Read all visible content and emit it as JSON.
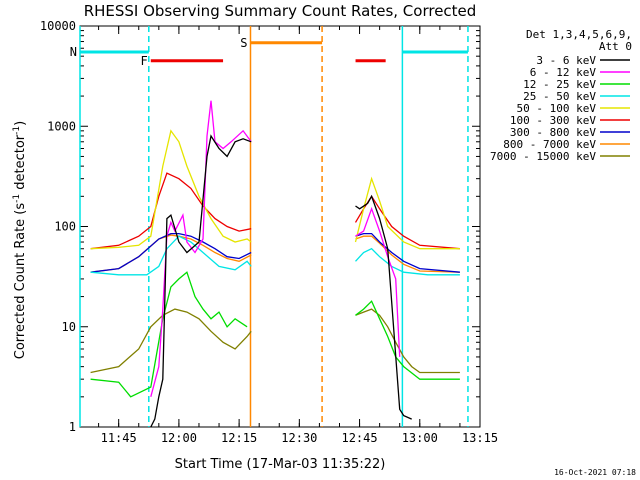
{
  "chart_data": {
    "type": "line",
    "title": "RHESSI Observing Summary Count Rates, Corrected",
    "xlabel": "Start Time (17-Mar-03 11:35:22)",
    "ylabel_main": "Corrected Count Rate (s",
    "ylabel_sup": "-1",
    "ylabel_mid": " detector",
    "ylabel_end": ")",
    "x_ticks": [
      "11:45",
      "12:00",
      "12:15",
      "12:30",
      "12:45",
      "13:00",
      "13:15"
    ],
    "y_ticks": [
      "1",
      "10",
      "100",
      "1000",
      "10000"
    ],
    "y_scale": "log",
    "ylim": [
      1,
      10000
    ],
    "xlim": [
      "11:35:22",
      "13:15:00"
    ],
    "legend_header": [
      "Det 1,3,4,5,6,9,",
      "Att 0"
    ],
    "legend_position": "top-right, outside plot",
    "flags": {
      "N_label": "N",
      "F_label": "F",
      "S_label": "S"
    },
    "series": [
      {
        "name": "3 - 6 keV",
        "color": "#000000",
        "points": [
          [
            "11:53",
            1
          ],
          [
            "11:54",
            1.2
          ],
          [
            "11:55",
            2
          ],
          [
            "11:56",
            3
          ],
          [
            "11:57",
            120
          ],
          [
            "11:58",
            130
          ],
          [
            "12:00",
            70
          ],
          [
            "12:02",
            55
          ],
          [
            "12:05",
            70
          ],
          [
            "12:07",
            500
          ],
          [
            "12:08",
            800
          ],
          [
            "12:10",
            600
          ],
          [
            "12:12",
            500
          ],
          [
            "12:14",
            700
          ],
          [
            "12:16",
            750
          ],
          [
            "12:18",
            700
          ],
          [
            "12:44",
            160
          ],
          [
            "12:45",
            150
          ],
          [
            "12:47",
            170
          ],
          [
            "12:48",
            200
          ],
          [
            "12:50",
            120
          ],
          [
            "12:52",
            60
          ],
          [
            "12:55",
            1.5
          ],
          [
            "12:56",
            1.3
          ],
          [
            "12:58",
            1.2
          ]
        ]
      },
      {
        "name": "6 - 12 keV",
        "color": "#ff00ff",
        "points": [
          [
            "11:53",
            2
          ],
          [
            "11:55",
            4
          ],
          [
            "11:56",
            15
          ],
          [
            "11:57",
            80
          ],
          [
            "11:58",
            110
          ],
          [
            "11:59",
            90
          ],
          [
            "12:01",
            130
          ],
          [
            "12:02",
            70
          ],
          [
            "12:04",
            55
          ],
          [
            "12:06",
            75
          ],
          [
            "12:07",
            800
          ],
          [
            "12:08",
            1800
          ],
          [
            "12:09",
            700
          ],
          [
            "12:11",
            600
          ],
          [
            "12:13",
            700
          ],
          [
            "12:16",
            900
          ],
          [
            "12:18",
            700
          ],
          [
            "12:44",
            80
          ],
          [
            "12:46",
            90
          ],
          [
            "12:48",
            150
          ],
          [
            "12:50",
            90
          ],
          [
            "12:52",
            50
          ],
          [
            "12:54",
            30
          ],
          [
            "12:55",
            5
          ]
        ]
      },
      {
        "name": "12 - 25 keV",
        "color": "#00dd00",
        "points": [
          [
            "11:38",
            3
          ],
          [
            "11:45",
            2.8
          ],
          [
            "11:48",
            2
          ],
          [
            "11:53",
            2.5
          ],
          [
            "11:56",
            12
          ],
          [
            "11:58",
            25
          ],
          [
            "12:00",
            30
          ],
          [
            "12:02",
            35
          ],
          [
            "12:04",
            20
          ],
          [
            "12:06",
            15
          ],
          [
            "12:08",
            12
          ],
          [
            "12:10",
            14
          ],
          [
            "12:12",
            10
          ],
          [
            "12:14",
            12
          ],
          [
            "12:17",
            10
          ],
          [
            "12:44",
            13
          ],
          [
            "12:46",
            15
          ],
          [
            "12:48",
            18
          ],
          [
            "12:50",
            12
          ],
          [
            "12:52",
            8
          ],
          [
            "12:54",
            5
          ],
          [
            "12:56",
            4
          ],
          [
            "13:00",
            3
          ],
          [
            "13:10",
            3
          ]
        ]
      },
      {
        "name": "25 - 50 keV",
        "color": "#00e5e5",
        "points": [
          [
            "11:38",
            35
          ],
          [
            "11:45",
            33
          ],
          [
            "11:52",
            33
          ],
          [
            "11:55",
            40
          ],
          [
            "11:57",
            60
          ],
          [
            "12:00",
            80
          ],
          [
            "12:03",
            70
          ],
          [
            "12:06",
            55
          ],
          [
            "12:10",
            40
          ],
          [
            "12:14",
            37
          ],
          [
            "12:17",
            45
          ],
          [
            "12:18",
            40
          ],
          [
            "12:44",
            45
          ],
          [
            "12:46",
            55
          ],
          [
            "12:48",
            60
          ],
          [
            "12:50",
            50
          ],
          [
            "12:53",
            40
          ],
          [
            "12:56",
            35
          ],
          [
            "13:02",
            33
          ],
          [
            "13:10",
            33
          ]
        ]
      },
      {
        "name": "50 - 100 keV",
        "color": "#e5e500",
        "points": [
          [
            "11:38",
            60
          ],
          [
            "11:45",
            62
          ],
          [
            "11:50",
            65
          ],
          [
            "11:53",
            80
          ],
          [
            "11:56",
            400
          ],
          [
            "11:58",
            900
          ],
          [
            "12:00",
            700
          ],
          [
            "12:02",
            400
          ],
          [
            "12:05",
            200
          ],
          [
            "12:08",
            120
          ],
          [
            "12:11",
            80
          ],
          [
            "12:14",
            70
          ],
          [
            "12:17",
            75
          ],
          [
            "12:18",
            70
          ],
          [
            "12:44",
            70
          ],
          [
            "12:46",
            150
          ],
          [
            "12:48",
            300
          ],
          [
            "12:50",
            180
          ],
          [
            "12:52",
            100
          ],
          [
            "12:56",
            70
          ],
          [
            "13:00",
            60
          ],
          [
            "13:10",
            60
          ]
        ]
      },
      {
        "name": "100 - 300 keV",
        "color": "#ee0000",
        "points": [
          [
            "11:38",
            60
          ],
          [
            "11:45",
            65
          ],
          [
            "11:50",
            80
          ],
          [
            "11:53",
            100
          ],
          [
            "11:55",
            200
          ],
          [
            "11:57",
            340
          ],
          [
            "12:00",
            300
          ],
          [
            "12:03",
            240
          ],
          [
            "12:06",
            160
          ],
          [
            "12:09",
            120
          ],
          [
            "12:12",
            100
          ],
          [
            "12:15",
            90
          ],
          [
            "12:18",
            95
          ],
          [
            "12:44",
            110
          ],
          [
            "12:46",
            150
          ],
          [
            "12:48",
            200
          ],
          [
            "12:50",
            150
          ],
          [
            "12:53",
            100
          ],
          [
            "12:56",
            80
          ],
          [
            "13:00",
            65
          ],
          [
            "13:10",
            60
          ]
        ]
      },
      {
        "name": "300 - 800 keV",
        "color": "#0000cc",
        "points": [
          [
            "11:38",
            35
          ],
          [
            "11:45",
            38
          ],
          [
            "11:50",
            50
          ],
          [
            "11:55",
            75
          ],
          [
            "11:58",
            85
          ],
          [
            "12:00",
            85
          ],
          [
            "12:03",
            80
          ],
          [
            "12:06",
            70
          ],
          [
            "12:09",
            60
          ],
          [
            "12:12",
            50
          ],
          [
            "12:15",
            48
          ],
          [
            "12:18",
            55
          ],
          [
            "12:44",
            80
          ],
          [
            "12:46",
            85
          ],
          [
            "12:48",
            85
          ],
          [
            "12:50",
            70
          ],
          [
            "12:53",
            55
          ],
          [
            "12:56",
            45
          ],
          [
            "13:00",
            38
          ],
          [
            "13:10",
            35
          ]
        ]
      },
      {
        "name": "800 - 7000 keV",
        "color": "#ff8800",
        "points": [
          [
            "11:38",
            35
          ],
          [
            "11:45",
            38
          ],
          [
            "11:50",
            50
          ],
          [
            "11:55",
            75
          ],
          [
            "11:58",
            82
          ],
          [
            "12:00",
            80
          ],
          [
            "12:03",
            75
          ],
          [
            "12:06",
            65
          ],
          [
            "12:09",
            55
          ],
          [
            "12:12",
            48
          ],
          [
            "12:15",
            45
          ],
          [
            "12:18",
            52
          ],
          [
            "12:44",
            75
          ],
          [
            "12:46",
            80
          ],
          [
            "12:48",
            80
          ],
          [
            "12:50",
            68
          ],
          [
            "12:53",
            52
          ],
          [
            "12:56",
            42
          ],
          [
            "13:00",
            36
          ],
          [
            "13:10",
            35
          ]
        ]
      },
      {
        "name": "7000 - 15000 keV",
        "color": "#808000",
        "points": [
          [
            "11:38",
            3.5
          ],
          [
            "11:45",
            4
          ],
          [
            "11:50",
            6
          ],
          [
            "11:53",
            10
          ],
          [
            "11:56",
            13
          ],
          [
            "11:59",
            15
          ],
          [
            "12:02",
            14
          ],
          [
            "12:05",
            12
          ],
          [
            "12:08",
            9
          ],
          [
            "12:11",
            7
          ],
          [
            "12:14",
            6
          ],
          [
            "12:17",
            8
          ],
          [
            "12:18",
            9
          ],
          [
            "12:44",
            13
          ],
          [
            "12:46",
            14
          ],
          [
            "12:48",
            15
          ],
          [
            "12:50",
            13
          ],
          [
            "12:52",
            10
          ],
          [
            "12:54",
            7
          ],
          [
            "12:56",
            5
          ],
          [
            "12:58",
            4
          ],
          [
            "13:00",
            3.5
          ],
          [
            "13:10",
            3.5
          ]
        ]
      }
    ],
    "flag_bars": [
      {
        "label": "N",
        "color": "#00e5e5",
        "y": 5500,
        "segments": [
          [
            "11:35:22",
            "11:52:30"
          ],
          [
            "12:55:40",
            "13:12:00"
          ]
        ]
      },
      {
        "label": "F",
        "color": "#ee0000",
        "y": 4500,
        "segments": [
          [
            "11:53:00",
            "12:11:00"
          ],
          [
            "12:44:00",
            "12:51:30"
          ]
        ]
      },
      {
        "label": "S",
        "color": "#ff8800",
        "y": 6800,
        "segments": [
          [
            "12:17:50",
            "12:35:40"
          ]
        ]
      }
    ],
    "vlines": [
      {
        "color": "#00e5e5",
        "style": "dashed",
        "x": "11:52:30"
      },
      {
        "color": "#00e5e5",
        "style": "solid",
        "x": "12:55:40"
      },
      {
        "color": "#00e5e5",
        "style": "dashed",
        "x": "13:12:00"
      },
      {
        "color": "#00e5e5",
        "style": "solid",
        "x": "11:35:22"
      },
      {
        "color": "#ff8800",
        "style": "solid",
        "x": "12:17:50"
      },
      {
        "color": "#ff8800",
        "style": "dashed",
        "x": "12:35:40"
      }
    ],
    "timestamp": "16-Oct-2021 07:18"
  }
}
